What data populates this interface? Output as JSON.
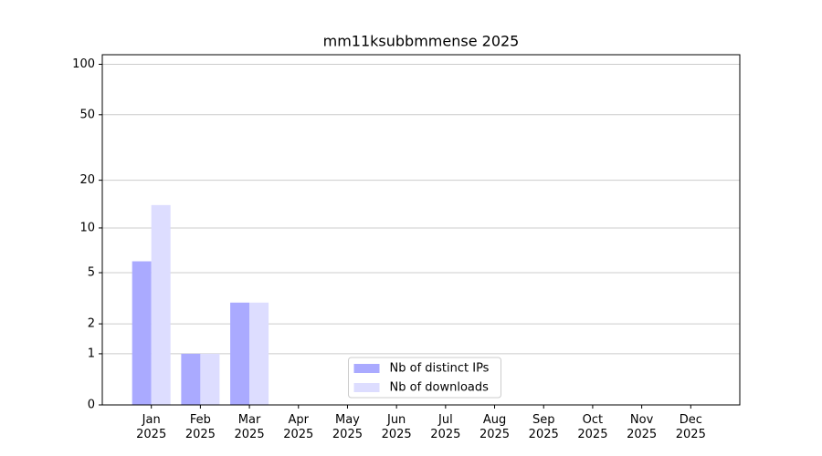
{
  "chart_data": {
    "type": "bar",
    "title": "mm11ksubbmmense 2025",
    "categories": [
      "Jan 2025",
      "Feb 2025",
      "Mar 2025",
      "Apr 2025",
      "May 2025",
      "Jun 2025",
      "Jul 2025",
      "Aug 2025",
      "Sep 2025",
      "Oct 2025",
      "Nov 2025",
      "Dec 2025"
    ],
    "series": [
      {
        "name": "Nb of distinct IPs",
        "color": "#aaaaff",
        "values": [
          6,
          1,
          3,
          0,
          0,
          0,
          0,
          0,
          0,
          0,
          0,
          0
        ]
      },
      {
        "name": "Nb of downloads",
        "color": "#ddddff",
        "values": [
          14,
          1,
          3,
          0,
          0,
          0,
          0,
          0,
          0,
          0,
          0,
          0
        ]
      }
    ],
    "yscale": "log1p",
    "ylim": [
      0,
      114
    ],
    "yticks": [
      0,
      1,
      2,
      5,
      10,
      20,
      50,
      100
    ],
    "grid": true,
    "legend": "lower center"
  }
}
